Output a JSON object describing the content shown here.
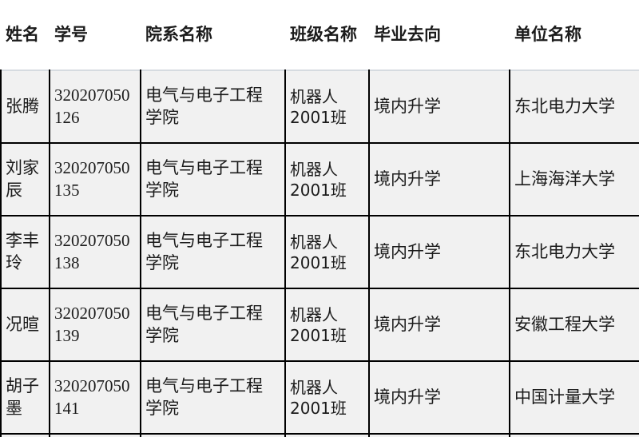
{
  "table": {
    "columns": [
      {
        "key": "name",
        "label": "姓名"
      },
      {
        "key": "student_id",
        "label": "学号"
      },
      {
        "key": "department",
        "label": "院系名称"
      },
      {
        "key": "class_name",
        "label": "班级名称"
      },
      {
        "key": "destination",
        "label": "毕业去向"
      },
      {
        "key": "organization",
        "label": "单位名称"
      }
    ],
    "rows": [
      {
        "name": "张腾",
        "student_id": "320207050126",
        "department": "电气与电子工程学院",
        "class_name": "机器人2001班",
        "destination": "境内升学",
        "organization": "东北电力大学"
      },
      {
        "name": "刘家辰",
        "student_id": "320207050135",
        "department": "电气与电子工程学院",
        "class_name": "机器人2001班",
        "destination": "境内升学",
        "organization": "上海海洋大学"
      },
      {
        "name": "李丰玲",
        "student_id": "320207050138",
        "department": "电气与电子工程学院",
        "class_name": "机器人2001班",
        "destination": "境内升学",
        "organization": "东北电力大学"
      },
      {
        "name": "况暄",
        "student_id": "320207050139",
        "department": "电气与电子工程学院",
        "class_name": "机器人2001班",
        "destination": "境内升学",
        "organization": "安徽工程大学"
      },
      {
        "name": "胡子墨",
        "student_id": "320207050141",
        "department": "电气与电子工程学院",
        "class_name": "机器人2001班",
        "destination": "境内升学",
        "organization": "中国计量大学"
      }
    ]
  },
  "colors": {
    "page_bg": "#ffffff",
    "cell_bg": "#f1f1f1",
    "border": "#000000",
    "body_top_border": "#d6dbe0",
    "text": "#1b1b1b"
  }
}
